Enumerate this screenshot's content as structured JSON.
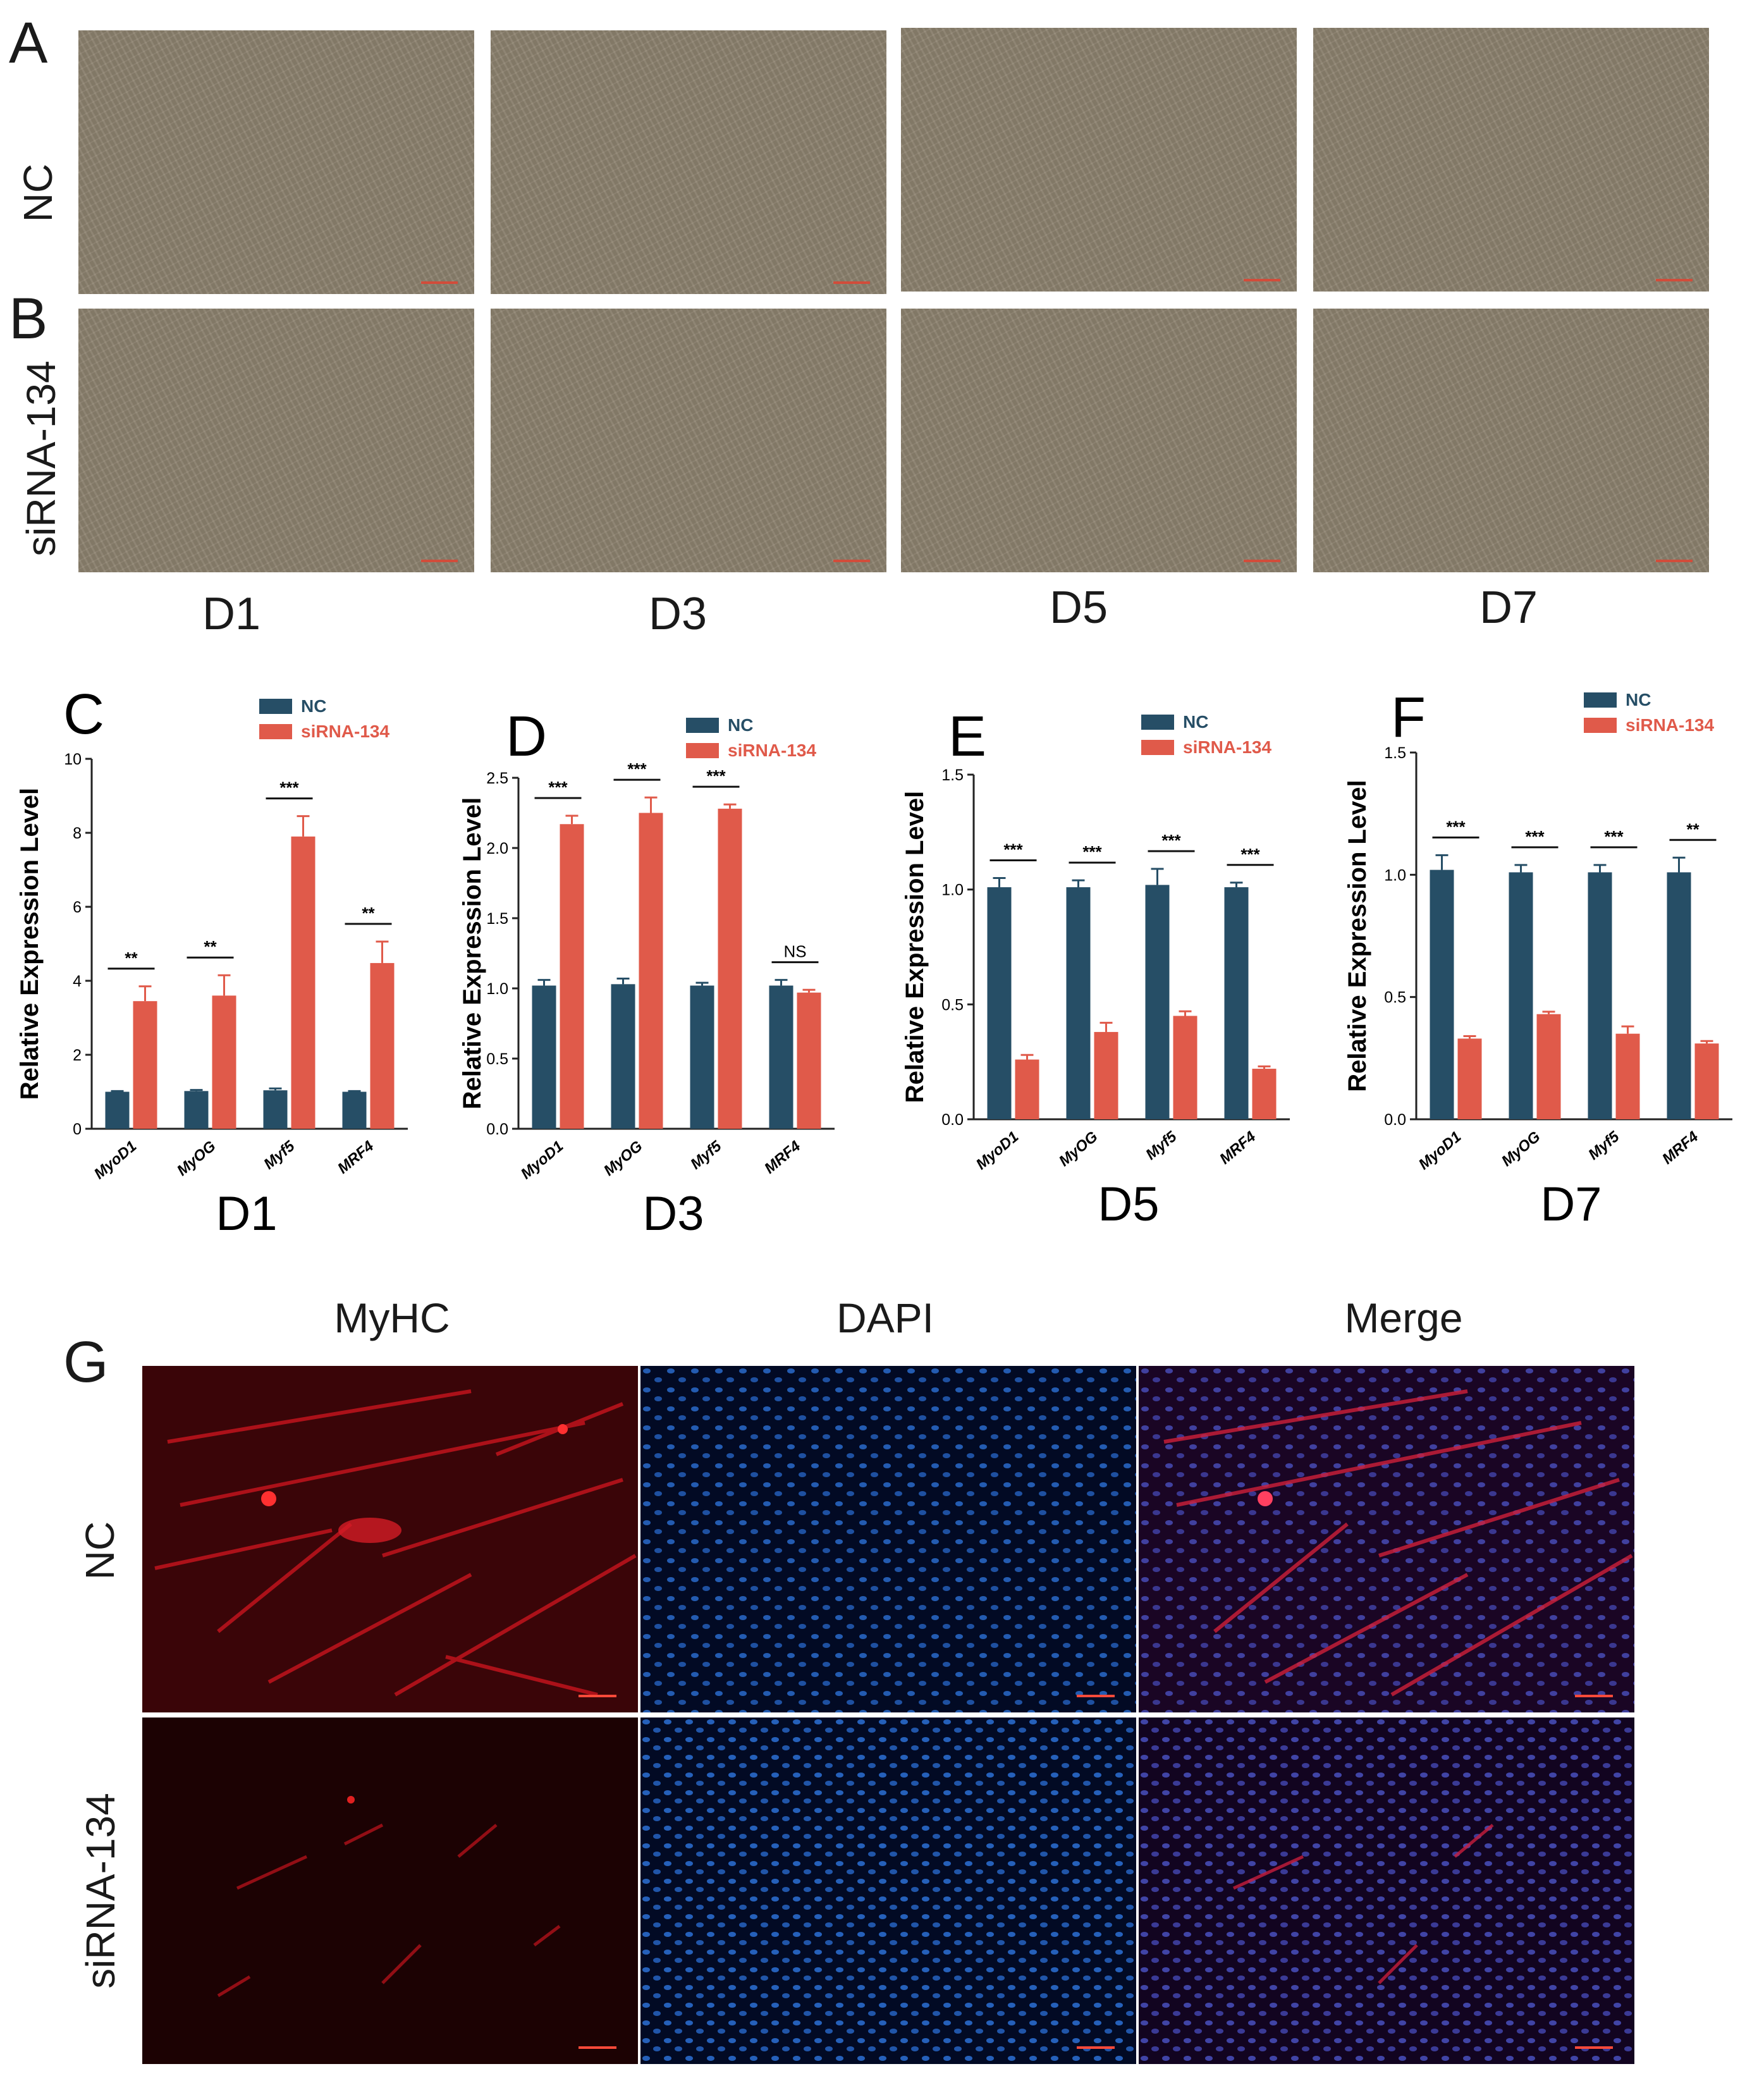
{
  "panel_letters": {
    "a": "A",
    "b": "B",
    "c": "C",
    "d": "D",
    "e": "E",
    "f": "F",
    "g": "G"
  },
  "rows": {
    "nc": "NC",
    "sirna": "siRNA-134"
  },
  "days": [
    "D1",
    "D3",
    "D5",
    "D7"
  ],
  "fluor_titles": [
    "MyHC",
    "DAPI",
    "Merge"
  ],
  "colors": {
    "nc": "#264e66",
    "sirna": "#e05a4a",
    "phase": "#8e8370",
    "myhc": "#c0141d",
    "dapi": "#1d57b8"
  },
  "chart_data": [
    {
      "type": "bar",
      "panel": "C",
      "day_label": "D1",
      "ylabel": "Relative Expression Level",
      "categories": [
        "MyoD1",
        "MyOG",
        "Myf5",
        "MRF4"
      ],
      "ylim": [
        0,
        10
      ],
      "yticks": [
        0,
        2,
        4,
        6,
        8,
        10
      ],
      "ytick_labels": [
        "0",
        "2",
        "4",
        "6",
        "8",
        "10"
      ],
      "legend": [
        "NC",
        "siRNA-134"
      ],
      "series": [
        {
          "name": "NC",
          "values": [
            1.0,
            1.02,
            1.04,
            1.0
          ],
          "errors": [
            0.02,
            0.03,
            0.05,
            0.02
          ]
        },
        {
          "name": "siRNA-134",
          "values": [
            3.45,
            3.6,
            7.9,
            4.48
          ],
          "errors": [
            0.4,
            0.55,
            0.55,
            0.58
          ]
        }
      ],
      "significance": [
        "**",
        "**",
        "***",
        "**"
      ]
    },
    {
      "type": "bar",
      "panel": "D",
      "day_label": "D3",
      "ylabel": "Relative Expression Level",
      "categories": [
        "MyoD1",
        "MyOG",
        "Myf5",
        "MRF4"
      ],
      "ylim": [
        0,
        2.5
      ],
      "yticks": [
        0,
        0.5,
        1.0,
        1.5,
        2.0,
        2.5
      ],
      "ytick_labels": [
        "0.0",
        "0.5",
        "1.0",
        "1.5",
        "2.0",
        "2.5"
      ],
      "legend": [
        "NC",
        "siRNA-134"
      ],
      "series": [
        {
          "name": "NC",
          "values": [
            1.02,
            1.03,
            1.02,
            1.02
          ],
          "errors": [
            0.04,
            0.04,
            0.02,
            0.04
          ]
        },
        {
          "name": "siRNA-134",
          "values": [
            2.17,
            2.25,
            2.28,
            0.97
          ],
          "errors": [
            0.06,
            0.11,
            0.03,
            0.02
          ]
        }
      ],
      "significance": [
        "***",
        "***",
        "***",
        "NS"
      ]
    },
    {
      "type": "bar",
      "panel": "E",
      "day_label": "D5",
      "ylabel": "Relative Expression Level",
      "categories": [
        "MyoD1",
        "MyOG",
        "Myf5",
        "MRF4"
      ],
      "ylim": [
        0,
        1.5
      ],
      "yticks": [
        0,
        0.5,
        1.0,
        1.5
      ],
      "ytick_labels": [
        "0.0",
        "0.5",
        "1.0",
        "1.5"
      ],
      "legend": [
        "NC",
        "siRNA-134"
      ],
      "series": [
        {
          "name": "NC",
          "values": [
            1.01,
            1.01,
            1.02,
            1.01
          ],
          "errors": [
            0.04,
            0.03,
            0.07,
            0.02
          ]
        },
        {
          "name": "siRNA-134",
          "values": [
            0.26,
            0.38,
            0.45,
            0.22
          ],
          "errors": [
            0.02,
            0.04,
            0.02,
            0.01
          ]
        }
      ],
      "significance": [
        "***",
        "***",
        "***",
        "***"
      ]
    },
    {
      "type": "bar",
      "panel": "F",
      "day_label": "D7",
      "ylabel": "Relative Expression Level",
      "categories": [
        "MyoD1",
        "MyOG",
        "Myf5",
        "MRF4"
      ],
      "ylim": [
        0,
        1.5
      ],
      "yticks": [
        0,
        0.5,
        1.0,
        1.5
      ],
      "ytick_labels": [
        "0.0",
        "0.5",
        "1.0",
        "1.5"
      ],
      "legend": [
        "NC",
        "siRNA-134"
      ],
      "series": [
        {
          "name": "NC",
          "values": [
            1.02,
            1.01,
            1.01,
            1.01
          ],
          "errors": [
            0.06,
            0.03,
            0.03,
            0.06
          ]
        },
        {
          "name": "siRNA-134",
          "values": [
            0.33,
            0.43,
            0.35,
            0.31
          ],
          "errors": [
            0.01,
            0.01,
            0.03,
            0.01
          ]
        }
      ],
      "significance": [
        "***",
        "***",
        "***",
        "**"
      ]
    }
  ]
}
